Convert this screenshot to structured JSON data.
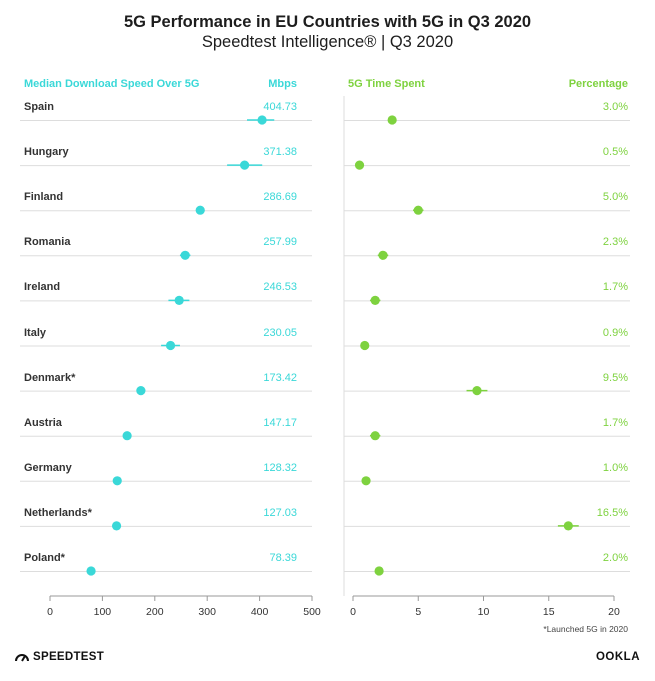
{
  "title": "5G Performance in EU Countries with 5G in Q3 2020",
  "subtitle": "Speedtest Intelligence® | Q3 2020",
  "footnote": "*Launched 5G in 2020",
  "brand_left": "SPEEDTEST",
  "brand_right": "OOKLA",
  "colors": {
    "cyan": "#3ad8d8",
    "green": "#7ed23f",
    "grid": "#dddddd",
    "axis": "#999999"
  },
  "chart_data": [
    {
      "type": "scatter",
      "title": "Median Download Speed Over 5G",
      "unit_label": "Mbps",
      "xlim": [
        0,
        500
      ],
      "xticks": [
        0,
        100,
        200,
        300,
        400,
        500
      ],
      "categories": [
        "Spain",
        "Hungary",
        "Finland",
        "Romania",
        "Ireland",
        "Italy",
        "Denmark*",
        "Austria",
        "Germany",
        "Netherlands*",
        "Poland*"
      ],
      "values": [
        404.73,
        371.38,
        286.69,
        257.99,
        246.53,
        230.05,
        173.42,
        147.17,
        128.32,
        127.03,
        78.39
      ],
      "labels": [
        "404.73",
        "371.38",
        "286.69",
        "257.99",
        "246.53",
        "230.05",
        "173.42",
        "147.17",
        "128.32",
        "127.03",
        "78.39"
      ],
      "ci_low": [
        376,
        338,
        280,
        248,
        226,
        212,
        166,
        140,
        122,
        120,
        70
      ],
      "ci_high": [
        428,
        405,
        294,
        268,
        266,
        248,
        182,
        155,
        136,
        134,
        86
      ]
    },
    {
      "type": "scatter",
      "title": "5G Time Spent",
      "unit_label": "Percentage",
      "xlim": [
        0,
        20
      ],
      "xticks": [
        0,
        5,
        10,
        15,
        20
      ],
      "categories": [
        "Spain",
        "Hungary",
        "Finland",
        "Romania",
        "Ireland",
        "Italy",
        "Denmark*",
        "Austria",
        "Germany",
        "Netherlands*",
        "Poland*"
      ],
      "values": [
        3.0,
        0.5,
        5.0,
        2.3,
        1.7,
        0.9,
        9.5,
        1.7,
        1.0,
        16.5,
        2.0
      ],
      "labels": [
        "3.0%",
        "0.5%",
        "5.0%",
        "2.3%",
        "1.7%",
        "0.9%",
        "9.5%",
        "1.7%",
        "1.0%",
        "16.5%",
        "2.0%"
      ],
      "ci_low": [
        2.7,
        0.4,
        4.6,
        1.9,
        1.3,
        0.6,
        8.7,
        1.3,
        0.7,
        15.7,
        1.7
      ],
      "ci_high": [
        3.3,
        0.6,
        5.4,
        2.7,
        2.1,
        1.2,
        10.3,
        2.1,
        1.3,
        17.3,
        2.3
      ]
    }
  ]
}
